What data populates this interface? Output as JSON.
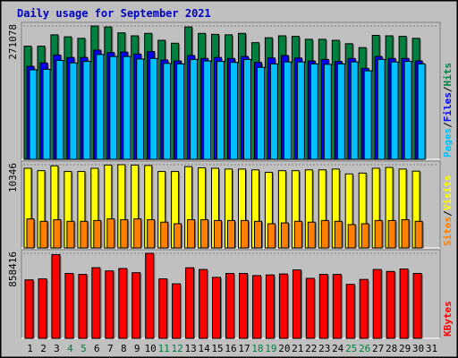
{
  "title": "Daily usage for September 2021",
  "colors": {
    "hits": "#008040",
    "files": "#0000ff",
    "pages": "#00c0ff",
    "visits": "#ffff00",
    "sites": "#ff8000",
    "kbytes": "#ff0000",
    "title": "#0000c0",
    "weekend_label": "#008040",
    "weekday_label": "#000000",
    "background": "#c0c0c0"
  },
  "chart_data": [
    {
      "type": "bar",
      "panel": "hits-files-pages",
      "max_label": "271078",
      "side_labels": [
        "Pages",
        "Files",
        "Hits"
      ],
      "categories": [
        1,
        2,
        3,
        4,
        5,
        6,
        7,
        8,
        9,
        10,
        11,
        12,
        13,
        14,
        15,
        16,
        17,
        18,
        19,
        20,
        21,
        22,
        23,
        24,
        25,
        26,
        27,
        28,
        29,
        30,
        31
      ],
      "series": [
        {
          "name": "Hits",
          "values": [
            230000,
            230000,
            253000,
            249000,
            246000,
            271078,
            269000,
            257000,
            251000,
            256000,
            242000,
            236000,
            269000,
            256000,
            254000,
            253000,
            256000,
            237000,
            247000,
            251000,
            250000,
            244000,
            244000,
            242000,
            235000,
            227000,
            252000,
            251000,
            250000,
            246000,
            0
          ]
        },
        {
          "name": "Files",
          "values": [
            189000,
            196000,
            212000,
            207000,
            207000,
            222000,
            217000,
            218000,
            214000,
            219000,
            202000,
            200000,
            211000,
            205000,
            207000,
            205000,
            209000,
            197000,
            206000,
            211000,
            206000,
            200000,
            203000,
            199000,
            205000,
            185000,
            209000,
            205000,
            205000,
            200000,
            0
          ]
        },
        {
          "name": "Pages",
          "values": [
            182000,
            183000,
            201000,
            196000,
            199000,
            213000,
            209000,
            209000,
            204000,
            205000,
            195000,
            194000,
            203000,
            200000,
            199000,
            197000,
            203000,
            187000,
            194000,
            198000,
            198000,
            194000,
            193000,
            194000,
            198000,
            180000,
            203000,
            198000,
            199000,
            194000,
            0
          ]
        }
      ]
    },
    {
      "type": "bar",
      "panel": "visits-sites",
      "max_label": "10346",
      "side_labels": [
        "Sites",
        "Visits"
      ],
      "categories": [
        1,
        2,
        3,
        4,
        5,
        6,
        7,
        8,
        9,
        10,
        11,
        12,
        13,
        14,
        15,
        16,
        17,
        18,
        19,
        20,
        21,
        22,
        23,
        24,
        25,
        26,
        27,
        28,
        29,
        30,
        31
      ],
      "series": [
        {
          "name": "Visits",
          "values": [
            9900,
            9600,
            10200,
            9500,
            9500,
            9900,
            10300,
            10346,
            10300,
            10250,
            9500,
            9500,
            10100,
            9950,
            9900,
            9800,
            9800,
            9700,
            9400,
            9600,
            9600,
            9700,
            9700,
            9800,
            9200,
            9300,
            9900,
            10000,
            9800,
            9550,
            0
          ]
        },
        {
          "name": "Sites",
          "values": [
            3600,
            3300,
            3500,
            3300,
            3300,
            3400,
            3600,
            3500,
            3600,
            3500,
            3200,
            3000,
            3500,
            3500,
            3400,
            3400,
            3400,
            3300,
            3000,
            3100,
            3300,
            3200,
            3400,
            3300,
            2900,
            3000,
            3400,
            3400,
            3500,
            3300,
            0
          ]
        }
      ]
    },
    {
      "type": "bar",
      "panel": "kbytes",
      "max_label": "858416",
      "side_labels": [
        "KBytes"
      ],
      "categories": [
        1,
        2,
        3,
        4,
        5,
        6,
        7,
        8,
        9,
        10,
        11,
        12,
        13,
        14,
        15,
        16,
        17,
        18,
        19,
        20,
        21,
        22,
        23,
        24,
        25,
        26,
        27,
        28,
        29,
        30,
        31
      ],
      "series": [
        {
          "name": "KBytes",
          "values": [
            590000,
            600000,
            845000,
            655000,
            645000,
            713000,
            680000,
            705000,
            662000,
            858416,
            600000,
            550000,
            712000,
            695000,
            615000,
            655000,
            655000,
            633000,
            640000,
            650000,
            690000,
            605000,
            645000,
            645000,
            545000,
            595000,
            695000,
            675000,
            699000,
            655000,
            0
          ]
        }
      ]
    }
  ],
  "day_labels": [
    "1",
    "2",
    "3",
    "4",
    "5",
    "6",
    "7",
    "8",
    "9",
    "10",
    "11",
    "12",
    "13",
    "14",
    "15",
    "16",
    "17",
    "18",
    "19",
    "20",
    "21",
    "22",
    "23",
    "24",
    "25",
    "26",
    "27",
    "28",
    "29",
    "30",
    "31"
  ],
  "weekend_days": [
    4,
    5,
    11,
    12,
    18,
    19,
    25,
    26
  ]
}
